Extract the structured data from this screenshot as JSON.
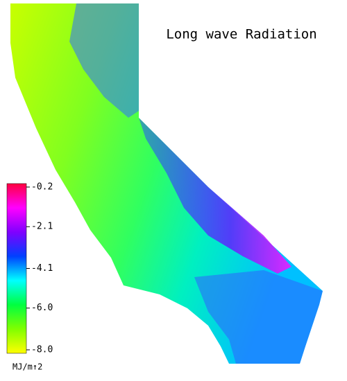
{
  "map": {
    "title": "Long wave Radiation",
    "colorbar": {
      "lim": [
        -8.0,
        -0.2
      ],
      "ticks": [
        -0.2,
        -2.1,
        -4.1,
        {
          "value": -6.0,
          "label": "-6.0"
        },
        {
          "value": -8.0,
          "label": "-8.0"
        }
      ],
      "unit": "MJ/m↑2",
      "colors": [
        "#ffff00",
        "#80ff00",
        "#00ff40",
        "#00ffff",
        "#0040ff",
        "#8000ff",
        "#ff00ff",
        "#ff0040"
      ]
    }
  }
}
